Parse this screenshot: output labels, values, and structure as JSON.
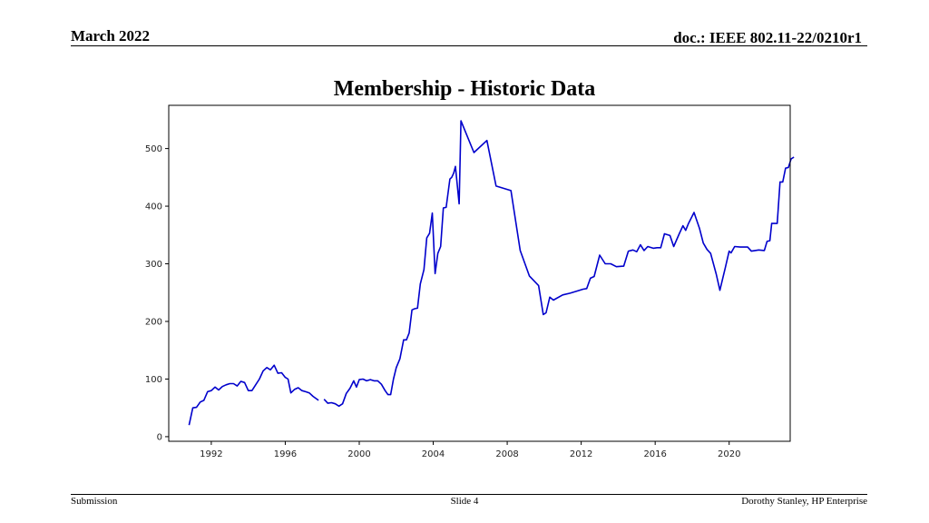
{
  "header": {
    "date": "March 2022",
    "doc": "doc.: IEEE 802.11-22/0210r1"
  },
  "footer": {
    "left": "Submission",
    "center": "Slide 4",
    "right": "Dorothy Stanley, HP Enterprise"
  },
  "chart_data": {
    "type": "line",
    "title": "Membership - Historic Data",
    "xlabel": "",
    "ylabel": "",
    "xlim": [
      1989.7,
      2023.3
    ],
    "ylim": [
      -8,
      575
    ],
    "xticks": [
      1992,
      1996,
      2000,
      2004,
      2008,
      2012,
      2016,
      2020
    ],
    "yticks": [
      0,
      100,
      200,
      300,
      400,
      500
    ],
    "grid": false,
    "line_color": "#0000cc",
    "series": [
      {
        "segments": [
          [
            [
              1990.8,
              20
            ],
            [
              1991.0,
              50
            ],
            [
              1991.2,
              51
            ],
            [
              1991.4,
              60
            ],
            [
              1991.6,
              63
            ],
            [
              1991.8,
              78
            ],
            [
              1992.0,
              80
            ],
            [
              1992.2,
              86
            ],
            [
              1992.4,
              81
            ],
            [
              1992.6,
              87
            ],
            [
              1992.8,
              90
            ],
            [
              1993.0,
              92
            ],
            [
              1993.2,
              92
            ],
            [
              1993.4,
              88
            ],
            [
              1993.6,
              96
            ],
            [
              1993.8,
              94
            ],
            [
              1994.0,
              80
            ],
            [
              1994.2,
              80
            ],
            [
              1994.4,
              90
            ],
            [
              1994.6,
              100
            ],
            [
              1994.8,
              114
            ],
            [
              1995.0,
              120
            ],
            [
              1995.2,
              116
            ],
            [
              1995.4,
              124
            ],
            [
              1995.6,
              110
            ],
            [
              1995.8,
              111
            ],
            [
              1996.0,
              103
            ],
            [
              1996.15,
              100
            ],
            [
              1996.3,
              76
            ],
            [
              1996.5,
              82
            ],
            [
              1996.7,
              85
            ],
            [
              1996.9,
              80
            ],
            [
              1997.1,
              78
            ],
            [
              1997.3,
              76
            ],
            [
              1997.5,
              70
            ],
            [
              1997.8,
              63
            ]
          ],
          [
            [
              1998.1,
              65
            ],
            [
              1998.3,
              58
            ],
            [
              1998.5,
              59
            ],
            [
              1998.7,
              57
            ],
            [
              1998.9,
              53
            ],
            [
              1999.1,
              57
            ],
            [
              1999.3,
              75
            ],
            [
              1999.5,
              84
            ],
            [
              1999.7,
              97
            ],
            [
              1999.85,
              86
            ],
            [
              2000.0,
              99
            ],
            [
              2000.2,
              100
            ],
            [
              2000.4,
              97
            ],
            [
              2000.6,
              99
            ],
            [
              2000.8,
              97
            ],
            [
              2001.0,
              97
            ],
            [
              2001.2,
              91
            ],
            [
              2001.4,
              80
            ],
            [
              2001.55,
              73
            ],
            [
              2001.7,
              73
            ],
            [
              2001.85,
              100
            ],
            [
              2002.0,
              120
            ],
            [
              2002.2,
              135
            ],
            [
              2002.4,
              168
            ],
            [
              2002.55,
              168
            ],
            [
              2002.7,
              180
            ],
            [
              2002.85,
              220
            ],
            [
              2003.0,
              222
            ],
            [
              2003.15,
              223
            ],
            [
              2003.3,
              265
            ],
            [
              2003.5,
              290
            ],
            [
              2003.65,
              345
            ],
            [
              2003.8,
              353
            ],
            [
              2003.95,
              388
            ],
            [
              2004.1,
              283
            ],
            [
              2004.25,
              318
            ],
            [
              2004.4,
              330
            ],
            [
              2004.55,
              397
            ],
            [
              2004.7,
              398
            ],
            [
              2004.9,
              447
            ],
            [
              2005.0,
              450
            ],
            [
              2005.1,
              457
            ],
            [
              2005.2,
              469
            ],
            [
              2005.4,
              404
            ],
            [
              2005.5,
              548
            ],
            [
              2006.2,
              493
            ],
            [
              2006.9,
              514
            ],
            [
              2007.4,
              435
            ],
            [
              2008.2,
              427
            ],
            [
              2008.7,
              323
            ],
            [
              2009.2,
              279
            ],
            [
              2009.7,
              262
            ],
            [
              2009.95,
              212
            ],
            [
              2010.1,
              215
            ],
            [
              2010.3,
              242
            ],
            [
              2010.5,
              237
            ],
            [
              2011.0,
              246
            ],
            [
              2011.4,
              249
            ],
            [
              2011.8,
              253
            ],
            [
              2012.1,
              256
            ],
            [
              2012.3,
              257
            ],
            [
              2012.5,
              275
            ],
            [
              2012.7,
              278
            ],
            [
              2013.0,
              315
            ],
            [
              2013.3,
              300
            ],
            [
              2013.6,
              300
            ],
            [
              2013.9,
              295
            ],
            [
              2014.3,
              296
            ],
            [
              2014.55,
              322
            ],
            [
              2014.8,
              324
            ],
            [
              2015.0,
              321
            ],
            [
              2015.2,
              333
            ],
            [
              2015.4,
              323
            ],
            [
              2015.6,
              330
            ],
            [
              2015.9,
              327
            ],
            [
              2016.1,
              328
            ],
            [
              2016.3,
              328
            ],
            [
              2016.5,
              352
            ],
            [
              2016.8,
              349
            ],
            [
              2017.0,
              330
            ],
            [
              2017.3,
              352
            ],
            [
              2017.5,
              366
            ],
            [
              2017.65,
              358
            ],
            [
              2017.8,
              370
            ],
            [
              2018.1,
              389
            ],
            [
              2018.4,
              361
            ],
            [
              2018.6,
              336
            ],
            [
              2018.8,
              325
            ],
            [
              2019.0,
              318
            ],
            [
              2019.3,
              282
            ],
            [
              2019.5,
              254
            ],
            [
              2019.8,
              294
            ],
            [
              2020.0,
              322
            ],
            [
              2020.1,
              319
            ],
            [
              2020.3,
              330
            ],
            [
              2020.6,
              329
            ],
            [
              2021.0,
              329
            ],
            [
              2021.2,
              322
            ],
            [
              2021.4,
              323
            ],
            [
              2021.6,
              324
            ],
            [
              2021.9,
              323
            ],
            [
              2022.05,
              339
            ],
            [
              2022.2,
              340
            ],
            [
              2022.3,
              370
            ],
            [
              2022.6,
              370
            ],
            [
              2022.75,
              442
            ],
            [
              2022.9,
              442
            ],
            [
              2023.05,
              466
            ],
            [
              2023.2,
              467
            ],
            [
              2023.35,
              482
            ],
            [
              2023.5,
              485
            ]
          ]
        ]
      }
    ]
  }
}
